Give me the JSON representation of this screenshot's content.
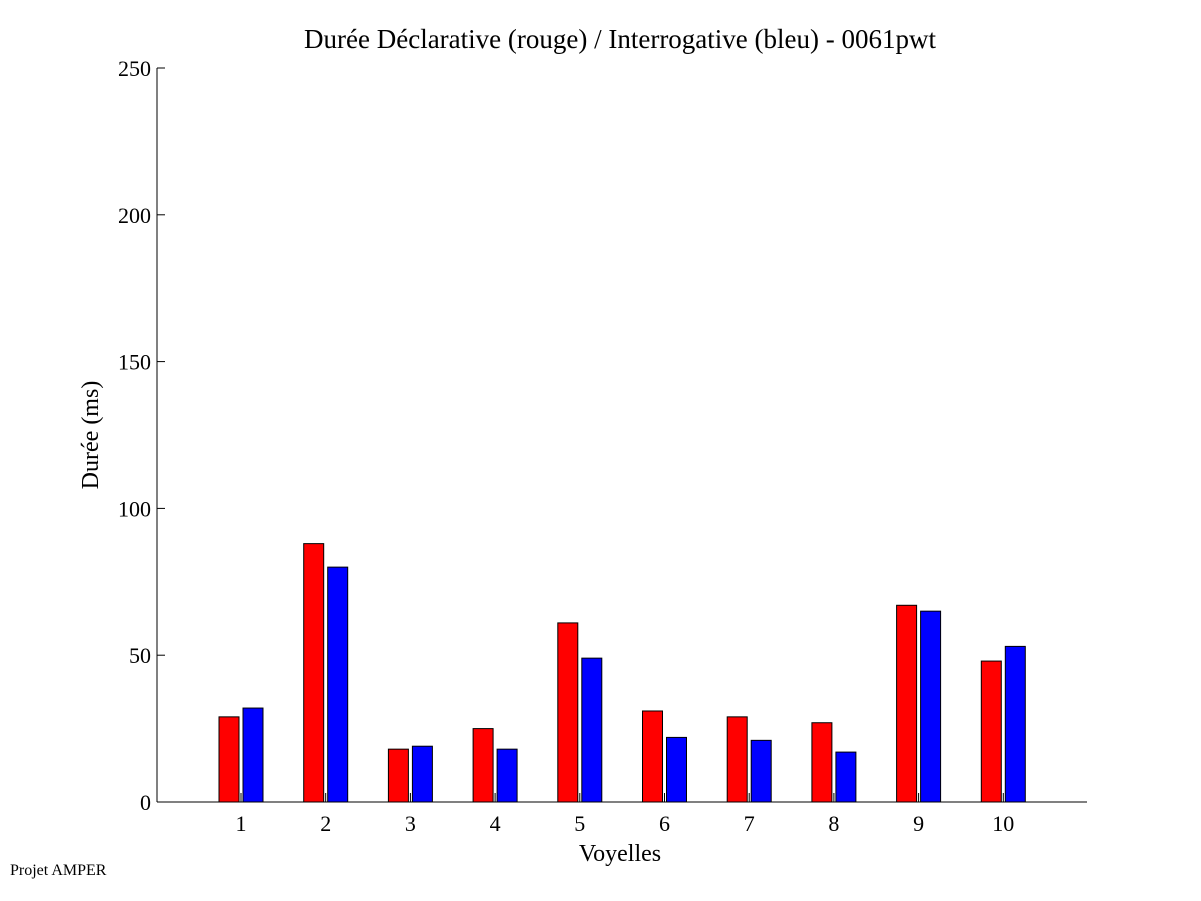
{
  "chart_data": {
    "type": "bar",
    "title": "Durée Déclarative (rouge) / Interrogative (bleu) - 0061pwt",
    "xlabel": "Voyelles",
    "ylabel": "Durée (ms)",
    "ylim": [
      0,
      250
    ],
    "yticks": [
      0,
      50,
      100,
      150,
      200,
      250
    ],
    "categories": [
      "1",
      "2",
      "3",
      "4",
      "5",
      "6",
      "7",
      "8",
      "9",
      "10"
    ],
    "series": [
      {
        "color": "#ff0000",
        "values": [
          29,
          88,
          18,
          25,
          61,
          31,
          29,
          27,
          67,
          48
        ]
      },
      {
        "color": "#0000ff",
        "values": [
          32,
          80,
          19,
          18,
          49,
          22,
          21,
          17,
          65,
          53
        ]
      }
    ],
    "grid": false,
    "legend": "none"
  },
  "footer": {
    "note": "Projet AMPER"
  }
}
